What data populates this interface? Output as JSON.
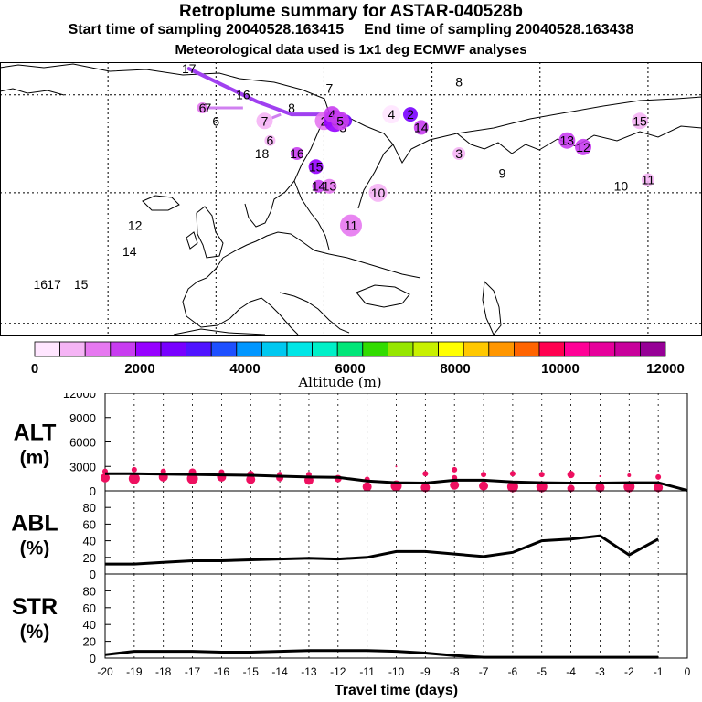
{
  "header": {
    "title": "Retroplume summary for ASTAR-040528b",
    "start_label": "Start time of sampling 20040528.163415",
    "end_label": "End time of sampling 20040528.163438",
    "meteo_label": "Meteorological data used is 1x1 deg ECMWF analyses"
  },
  "colorbar": {
    "colors": [
      "#ffe6ff",
      "#f5b4f5",
      "#e678f0",
      "#c83cf0",
      "#9600ff",
      "#7800ff",
      "#5014ff",
      "#1e50ff",
      "#0096ff",
      "#00c8f0",
      "#00e6e6",
      "#00f0c8",
      "#00e678",
      "#32dc00",
      "#96e600",
      "#c8f000",
      "#ffff00",
      "#ffc800",
      "#ff9600",
      "#ff6400",
      "#ff0050",
      "#ff0096",
      "#e6009b",
      "#c8009b",
      "#960096"
    ],
    "ticks": [
      "0",
      "2000",
      "4000",
      "6000",
      "8000",
      "10000",
      "12000"
    ],
    "label": "Altitude (m)"
  },
  "map": {
    "clusters": [
      {
        "n": "1",
        "lon": 28,
        "lat": 71,
        "alt": 2600,
        "r": 7
      },
      {
        "n": "2",
        "lon": 20,
        "lat": 71,
        "alt": 1400,
        "r": 10
      },
      {
        "n": "2",
        "lon": 52,
        "lat": 72,
        "alt": 2500,
        "r": 8
      },
      {
        "n": "3",
        "lon": 24,
        "lat": 71,
        "alt": 2200,
        "r": 12
      },
      {
        "n": "3",
        "lon": 70,
        "lat": 66,
        "alt": 600,
        "r": 7
      },
      {
        "n": "3",
        "lon": 27,
        "lat": 70,
        "alt": 300,
        "r": 5
      },
      {
        "n": "4",
        "lon": 23,
        "lat": 72,
        "alt": 1800,
        "r": 9
      },
      {
        "n": "4",
        "lon": 45,
        "lat": 72,
        "alt": 200,
        "r": 10
      },
      {
        "n": "5",
        "lon": 26,
        "lat": 71,
        "alt": 1600,
        "r": 10
      },
      {
        "n": "6",
        "lon": -25,
        "lat": 73,
        "alt": 1000,
        "r": 6
      },
      {
        "n": "6",
        "lon": 0,
        "lat": 68,
        "alt": 800,
        "r": 6
      },
      {
        "n": "6",
        "lon": -20,
        "lat": 71,
        "alt": 200,
        "r": 0
      },
      {
        "n": "7",
        "lon": -23,
        "lat": 73,
        "alt": 1200,
        "r": 0
      },
      {
        "n": "7",
        "lon": -2,
        "lat": 71,
        "alt": 700,
        "r": 9
      },
      {
        "n": "7",
        "lon": 22,
        "lat": 76,
        "alt": 200,
        "r": 0
      },
      {
        "n": "8",
        "lon": 8,
        "lat": 73,
        "alt": 200,
        "r": 0
      },
      {
        "n": "8",
        "lon": 70,
        "lat": 77,
        "alt": 200,
        "r": 0
      },
      {
        "n": "9",
        "lon": 86,
        "lat": 63,
        "alt": 300,
        "r": 0
      },
      {
        "n": "10",
        "lon": 40,
        "lat": 60,
        "alt": 700,
        "r": 10
      },
      {
        "n": "10",
        "lon": 130,
        "lat": 61,
        "alt": 800,
        "r": 0
      },
      {
        "n": "11",
        "lon": 30,
        "lat": 55,
        "alt": 1000,
        "r": 12
      },
      {
        "n": "11",
        "lon": 140,
        "lat": 62,
        "alt": 900,
        "r": 7
      },
      {
        "n": "12",
        "lon": -50,
        "lat": 55,
        "alt": 1800,
        "r": 0
      },
      {
        "n": "12",
        "lon": 116,
        "lat": 67,
        "alt": 1900,
        "r": 9
      },
      {
        "n": "13",
        "lon": 22,
        "lat": 61,
        "alt": 1400,
        "r": 8
      },
      {
        "n": "13",
        "lon": 110,
        "lat": 68,
        "alt": 1900,
        "r": 9
      },
      {
        "n": "14",
        "lon": 56,
        "lat": 70,
        "alt": 1800,
        "r": 8
      },
      {
        "n": "14",
        "lon": 18,
        "lat": 61,
        "alt": 1700,
        "r": 7
      },
      {
        "n": "14",
        "lon": -52,
        "lat": 51,
        "alt": 1800,
        "r": 0
      },
      {
        "n": "15",
        "lon": 137,
        "lat": 71,
        "alt": 800,
        "r": 9
      },
      {
        "n": "15",
        "lon": 17,
        "lat": 64,
        "alt": 2000,
        "r": 8
      },
      {
        "n": "15",
        "lon": -70,
        "lat": 46,
        "alt": 1800,
        "r": 0
      },
      {
        "n": "16",
        "lon": -10,
        "lat": 75,
        "alt": 200,
        "r": 0
      },
      {
        "n": "16",
        "lon": -85,
        "lat": 46,
        "alt": 1500,
        "r": 0
      },
      {
        "n": "16",
        "lon": 10,
        "lat": 66,
        "alt": 1800,
        "r": 7
      },
      {
        "n": "17",
        "lon": -30,
        "lat": 79,
        "alt": 2200,
        "r": 0
      },
      {
        "n": "17",
        "lon": -80,
        "lat": 46,
        "alt": 1500,
        "r": 0
      },
      {
        "n": "18",
        "lon": -3,
        "lat": 66,
        "alt": 1000,
        "r": 0
      }
    ],
    "trajectory": [
      {
        "lon": -30,
        "lat": 79
      },
      {
        "lon": -5,
        "lat": 74
      },
      {
        "lon": 8,
        "lat": 72
      },
      {
        "lon": 24,
        "lat": 72
      },
      {
        "lon": 26,
        "lat": 71
      }
    ],
    "branches": [
      [
        {
          "lon": -2,
          "lat": 71
        },
        {
          "lon": 4,
          "lat": 72
        }
      ],
      [
        {
          "lon": -25,
          "lat": 73
        },
        {
          "lon": -10,
          "lat": 73
        }
      ]
    ]
  },
  "chart_data": [
    {
      "type": "line",
      "id": "alt",
      "ylabel_line1": "ALT",
      "ylabel_line2": "(m)",
      "ylim": [
        0,
        12000
      ],
      "yticks": [
        "0",
        "3000",
        "6000",
        "9000",
        "12000"
      ],
      "x": [
        -20,
        -19,
        -18,
        -17,
        -16,
        -15,
        -14,
        -13,
        -12,
        -11,
        -10,
        -9,
        -8,
        -7,
        -6,
        -5,
        -4,
        -3,
        -2,
        -1,
        0
      ],
      "series": [
        {
          "name": "mean altitude",
          "values": [
            2100,
            2100,
            2050,
            2000,
            1950,
            1900,
            1800,
            1700,
            1650,
            1200,
            1000,
            950,
            1300,
            1300,
            1100,
            1000,
            950,
            950,
            1000,
            1000,
            50
          ]
        }
      ],
      "scatter": [
        {
          "x": -20,
          "y": 1600,
          "r": 5
        },
        {
          "x": -20,
          "y": 2400,
          "r": 3
        },
        {
          "x": -19,
          "y": 1500,
          "r": 6
        },
        {
          "x": -19,
          "y": 2600,
          "r": 3
        },
        {
          "x": -18,
          "y": 1700,
          "r": 5
        },
        {
          "x": -18,
          "y": 2400,
          "r": 3
        },
        {
          "x": -17,
          "y": 1500,
          "r": 6
        },
        {
          "x": -17,
          "y": 2300,
          "r": 4
        },
        {
          "x": -16,
          "y": 1700,
          "r": 5
        },
        {
          "x": -16,
          "y": 2300,
          "r": 3
        },
        {
          "x": -15,
          "y": 1400,
          "r": 5
        },
        {
          "x": -15,
          "y": 2000,
          "r": 4
        },
        {
          "x": -14,
          "y": 1600,
          "r": 4
        },
        {
          "x": -14,
          "y": 2000,
          "r": 3
        },
        {
          "x": -13,
          "y": 1300,
          "r": 5
        },
        {
          "x": -13,
          "y": 2000,
          "r": 3
        },
        {
          "x": -12,
          "y": 1500,
          "r": 4
        },
        {
          "x": -11,
          "y": 500,
          "r": 5
        },
        {
          "x": -11,
          "y": 1400,
          "r": 3
        },
        {
          "x": -10,
          "y": 600,
          "r": 6
        },
        {
          "x": -10,
          "y": 3000,
          "r": 1
        },
        {
          "x": -9,
          "y": 400,
          "r": 5
        },
        {
          "x": -9,
          "y": 2100,
          "r": 3
        },
        {
          "x": -8,
          "y": 700,
          "r": 5
        },
        {
          "x": -8,
          "y": 2600,
          "r": 3
        },
        {
          "x": -8,
          "y": 1600,
          "r": 3
        },
        {
          "x": -7,
          "y": 600,
          "r": 5
        },
        {
          "x": -7,
          "y": 2000,
          "r": 3
        },
        {
          "x": -6,
          "y": 500,
          "r": 6
        },
        {
          "x": -6,
          "y": 2100,
          "r": 3
        },
        {
          "x": -5,
          "y": 500,
          "r": 6
        },
        {
          "x": -5,
          "y": 2000,
          "r": 3
        },
        {
          "x": -4,
          "y": 300,
          "r": 4
        },
        {
          "x": -4,
          "y": 2000,
          "r": 4
        },
        {
          "x": -3,
          "y": 400,
          "r": 5
        },
        {
          "x": -3,
          "y": 1800,
          "r": 1
        },
        {
          "x": -2,
          "y": 500,
          "r": 6
        },
        {
          "x": -2,
          "y": 1900,
          "r": 2
        },
        {
          "x": -1,
          "y": 400,
          "r": 5
        },
        {
          "x": -1,
          "y": 1700,
          "r": 3
        }
      ]
    },
    {
      "type": "line",
      "id": "abl",
      "ylabel_line1": "ABL",
      "ylabel_line2": "(%)",
      "ylim": [
        0,
        100
      ],
      "yticks": [
        "0",
        "20",
        "40",
        "60",
        "80"
      ],
      "x": [
        -20,
        -19,
        -18,
        -17,
        -16,
        -15,
        -14,
        -13,
        -12,
        -11,
        -10,
        -9,
        -8,
        -7,
        -6,
        -5,
        -4,
        -3,
        -2,
        -1
      ],
      "series": [
        {
          "name": "fraction in ABL",
          "values": [
            12,
            12,
            14,
            16,
            16,
            17,
            18,
            19,
            18,
            20,
            27,
            27,
            24,
            21,
            26,
            40,
            42,
            46,
            23,
            42
          ]
        }
      ]
    },
    {
      "type": "line",
      "id": "str",
      "ylabel_line1": "STR",
      "ylabel_line2": "(%)",
      "ylim": [
        0,
        100
      ],
      "yticks": [
        "0",
        "20",
        "40",
        "60",
        "80"
      ],
      "x": [
        -20,
        -19,
        -18,
        -17,
        -16,
        -15,
        -14,
        -13,
        -12,
        -11,
        -10,
        -9,
        -8,
        -7,
        -6,
        -5,
        -4,
        -3,
        -2,
        -1
      ],
      "series": [
        {
          "name": "fraction in stratosphere",
          "values": [
            4,
            8,
            8,
            8,
            7,
            7,
            8,
            9,
            9,
            9,
            8,
            6,
            3,
            1,
            1,
            1,
            1,
            1,
            1,
            1
          ]
        }
      ],
      "xlabel": "Travel time (days)",
      "xticks": [
        "-20",
        "-19",
        "-18",
        "-17",
        "-16",
        "-15",
        "-14",
        "-13",
        "-12",
        "-11",
        "-10",
        "-9",
        "-8",
        "-7",
        "-6",
        "-5",
        "-4",
        "-3",
        "-2",
        "-1",
        "0"
      ]
    }
  ]
}
